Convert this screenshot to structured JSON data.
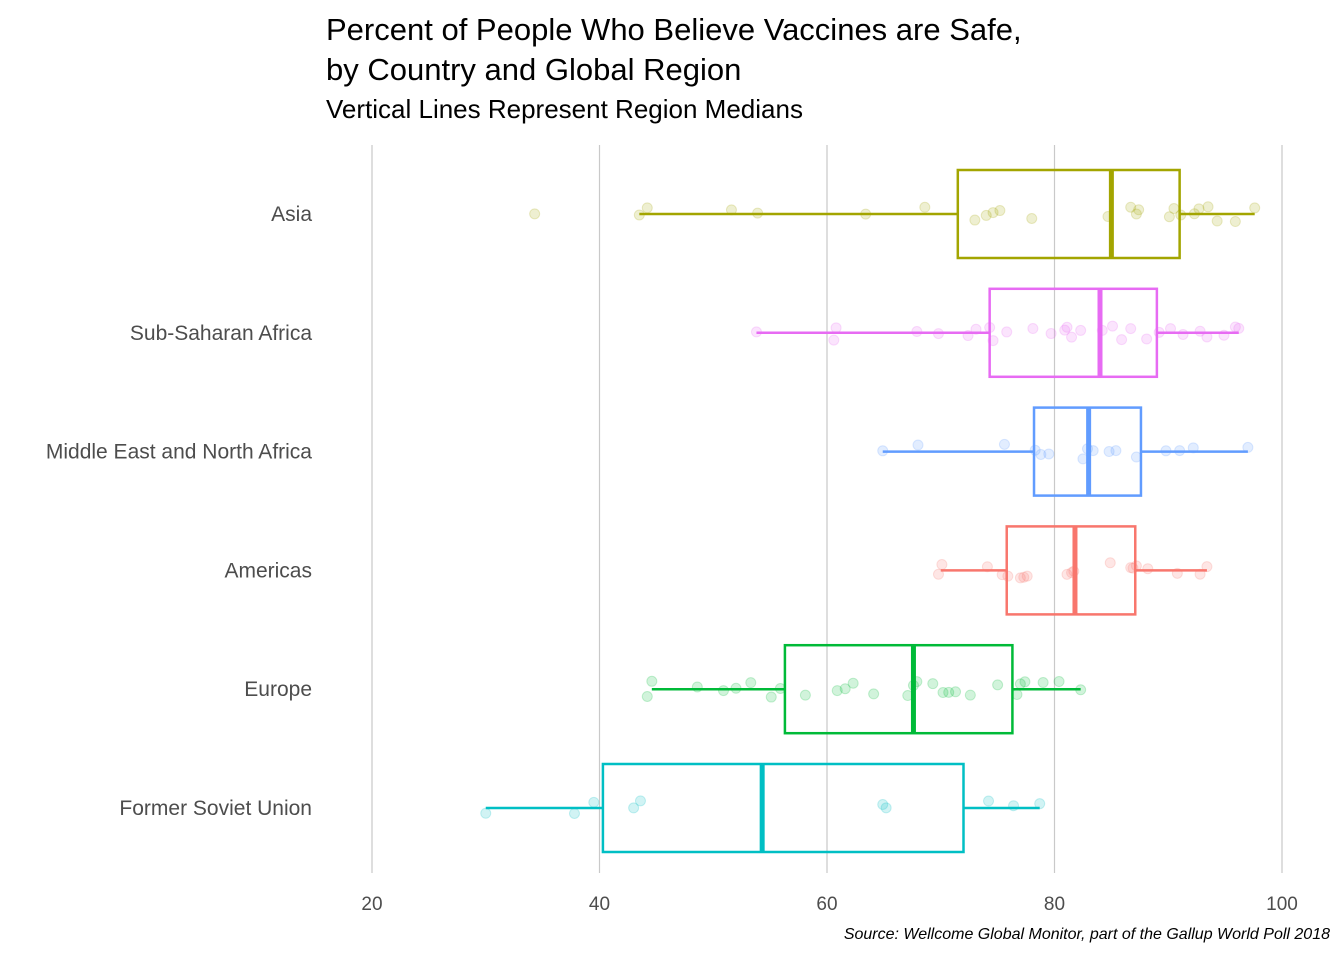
{
  "title_line1": "Percent of People Who Believe Vaccines are Safe,",
  "title_line2": "by Country and Global Region",
  "subtitle": "Vertical Lines Represent Region Medians",
  "caption": "Source: Wellcome Global Monitor, part of the Gallup World Poll 2018",
  "chart_data": {
    "type": "boxplot",
    "orientation": "horizontal",
    "title": "Percent of People Who Believe Vaccines are Safe, by Country and Global Region",
    "subtitle": "Vertical Lines Represent Region Medians",
    "xlabel": "",
    "ylabel": "",
    "xlim": [
      20,
      100
    ],
    "xticks": [
      20,
      40,
      60,
      80,
      100
    ],
    "grid": "vertical major",
    "legend": "none",
    "groups": [
      {
        "name": "Asia",
        "color": "#A3A500",
        "whisker_low": 43.5,
        "q1": 71.5,
        "median": 85.0,
        "q3": 91.0,
        "whisker_high": 97.6,
        "points": [
          34.3,
          43.5,
          44.2,
          51.6,
          53.9,
          63.4,
          68.6,
          73.0,
          74.0,
          74.6,
          75.2,
          78.0,
          84.7,
          86.7,
          87.2,
          87.4,
          90.1,
          90.5,
          91.1,
          92.3,
          92.7,
          93.5,
          94.3,
          95.9,
          97.6
        ]
      },
      {
        "name": "Sub-Saharan Africa",
        "color": "#E76BF3",
        "whisker_low": 53.8,
        "q1": 74.3,
        "median": 84.0,
        "q3": 89.0,
        "whisker_high": 96.2,
        "points": [
          53.8,
          60.6,
          60.8,
          67.9,
          69.8,
          72.4,
          73.1,
          74.3,
          74.6,
          75.8,
          78.1,
          79.7,
          80.9,
          81.1,
          81.5,
          82.3,
          84.2,
          85.1,
          85.9,
          86.7,
          88.1,
          89.2,
          90.2,
          91.3,
          92.8,
          93.4,
          94.9,
          95.9,
          96.2
        ]
      },
      {
        "name": "Middle East and North Africa",
        "color": "#619CFF",
        "whisker_low": 64.9,
        "q1": 78.2,
        "median": 83.0,
        "q3": 87.6,
        "whisker_high": 97.0,
        "points": [
          64.9,
          68.0,
          75.6,
          78.3,
          78.8,
          79.5,
          82.5,
          82.9,
          83.4,
          84.8,
          85.4,
          87.2,
          89.8,
          91.0,
          92.2,
          97.0
        ]
      },
      {
        "name": "Americas",
        "color": "#F8766D",
        "whisker_low": 70.0,
        "q1": 75.8,
        "median": 81.8,
        "q3": 87.1,
        "whisker_high": 93.4,
        "points": [
          69.8,
          70.1,
          74.1,
          75.4,
          75.9,
          77.0,
          77.3,
          77.6,
          81.1,
          81.5,
          81.7,
          84.9,
          86.7,
          86.9,
          87.2,
          88.2,
          90.8,
          92.8,
          93.4
        ]
      },
      {
        "name": "Europe",
        "color": "#00BA38",
        "whisker_low": 44.6,
        "q1": 56.3,
        "median": 67.6,
        "q3": 76.3,
        "whisker_high": 82.3,
        "points": [
          44.2,
          44.6,
          48.6,
          50.9,
          52.0,
          53.3,
          55.1,
          55.9,
          58.1,
          60.9,
          61.6,
          62.3,
          64.1,
          67.1,
          67.6,
          67.9,
          69.3,
          70.2,
          70.7,
          71.3,
          72.6,
          75.0,
          76.7,
          77.0,
          77.4,
          79.0,
          80.4,
          82.3
        ]
      },
      {
        "name": "Former Soviet Union",
        "color": "#00BFC4",
        "whisker_low": 30.0,
        "q1": 40.3,
        "median": 54.3,
        "q3": 72.0,
        "whisker_high": 78.7,
        "points": [
          30.0,
          37.8,
          39.5,
          43.0,
          43.6,
          64.9,
          65.2,
          74.2,
          76.4,
          78.7
        ]
      }
    ]
  }
}
